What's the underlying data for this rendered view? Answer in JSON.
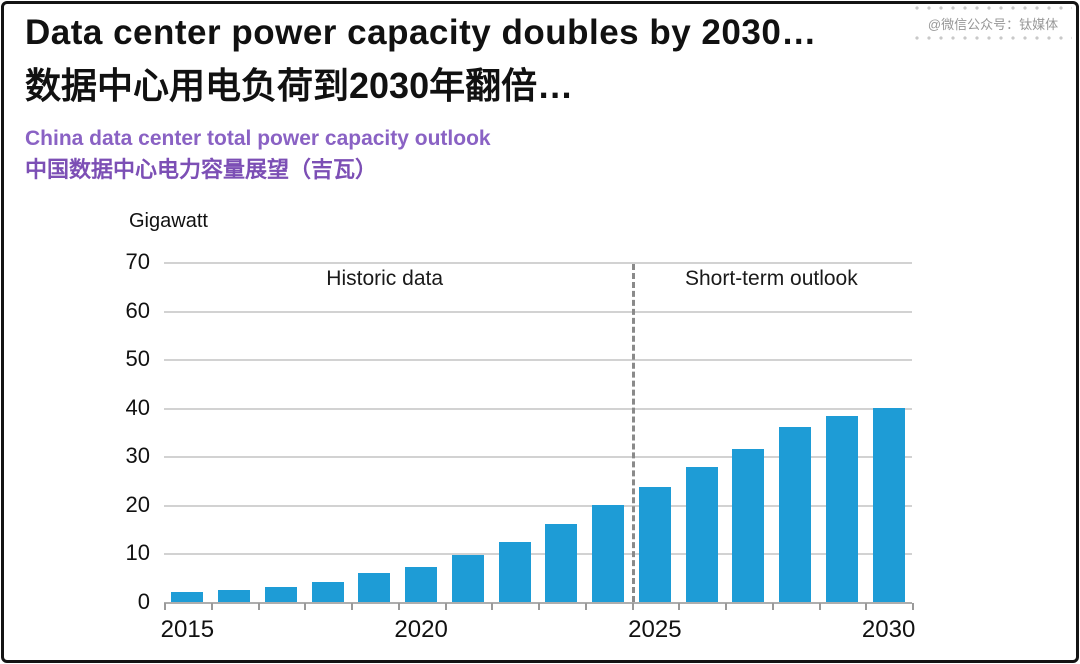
{
  "header": {
    "title_en": "Data center power capacity doubles by 2030…",
    "title_zh": "数据中心用电负荷到2030年翻倍…",
    "subtitle_en": "China data center total power capacity outlook",
    "subtitle_zh": "中国数据中心电力容量展望（吉瓦）"
  },
  "watermark": {
    "text": "@微信公众号：钛媒体"
  },
  "chart_data": {
    "type": "bar",
    "title": "China data center total power capacity outlook",
    "unit_label": "Gigawatt",
    "ylabel": "Gigawatt",
    "xlabel": "",
    "categories": [
      2015,
      2016,
      2017,
      2018,
      2019,
      2020,
      2021,
      2022,
      2023,
      2024,
      2025,
      2026,
      2027,
      2028,
      2029,
      2030
    ],
    "values": [
      2,
      2.5,
      3.1,
      4.2,
      5.9,
      7.3,
      9.6,
      12.4,
      16,
      20,
      23.7,
      27.7,
      31.4,
      36,
      38.2,
      40
    ],
    "ylim": [
      0,
      70
    ],
    "y_ticks": [
      0,
      10,
      20,
      30,
      40,
      50,
      60,
      70
    ],
    "x_label_years": [
      2015,
      2020,
      2025,
      2030
    ],
    "grid": true,
    "legend_position": "none",
    "annotations": {
      "historic": "Historic data",
      "outlook": "Short-term outlook"
    },
    "divider_between": [
      2024,
      2025
    ],
    "bar_color": "#1e9cd6"
  }
}
